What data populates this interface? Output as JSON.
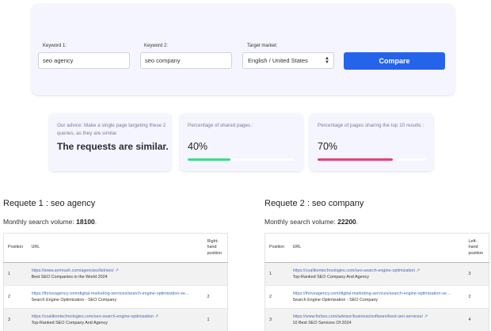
{
  "form": {
    "keyword1_label": "Keyword 1:",
    "keyword1_value": "seo agency",
    "keyword2_label": "Keyword 2:",
    "keyword2_value": "seo company",
    "market_label": "Target market:",
    "market_value": "English / United States",
    "compare_label": "Compare"
  },
  "advice": {
    "text": "Our advice: Make a single page targeting these 2 queries, as they are similar.",
    "verdict": "The requests are similar."
  },
  "shared_pages": {
    "label": "Percentage of shared pages :",
    "value": "40%",
    "fraction": 0.4,
    "color": "#3ddc84"
  },
  "top10_pages": {
    "label": "Percentage of pages sharing the top 10 results :",
    "value": "70%",
    "fraction": 0.7,
    "color": "#ee3d6d"
  },
  "request1": {
    "title": "Requete 1 : seo agency",
    "volume_label": "Monthly search volume:",
    "volume_value": "18100",
    "columns": [
      "Position",
      "URL",
      "Right-hand position"
    ],
    "rows": [
      {
        "position": "1",
        "url": "https://www.semrush.com/agencies/list/seo/",
        "page_title": "Best SEO Companies in the World 2024",
        "other_position": ""
      },
      {
        "position": "2",
        "url": "https://thriveagency.com/digital-marketing-services/search-engine-optimization-se...",
        "page_title": "Search Engine Optimization - SEO Company",
        "other_position": "2"
      },
      {
        "position": "3",
        "url": "https://coalitiontechnologies.com/seo-search-engine-optimization",
        "page_title": "Top-Ranked SEO Company And Agency",
        "other_position": "1"
      }
    ]
  },
  "request2": {
    "title": "Requete 2 : seo company",
    "volume_label": "Monthly search volume:",
    "volume_value": "22200",
    "columns": [
      "Position",
      "URL",
      "Left-hand position"
    ],
    "rows": [
      {
        "position": "1",
        "url": "https://coalitiontechnologies.com/seo-search-engine-optimization",
        "page_title": "Top-Ranked SEO Company And Agency",
        "other_position": "3"
      },
      {
        "position": "2",
        "url": "https://thriveagency.com/digital-marketing-services/search-engine-optimization-se...",
        "page_title": "Search Engine Optimization - SEO Company",
        "other_position": "2"
      },
      {
        "position": "3",
        "url": "https://www.forbes.com/advisor/business/software/best-seo-services/",
        "page_title": "10 Best SEO Services Of 2024",
        "other_position": "4"
      }
    ]
  },
  "icons": {
    "external_link": "external-link-icon",
    "select_caret": "chevron-updown-icon"
  }
}
